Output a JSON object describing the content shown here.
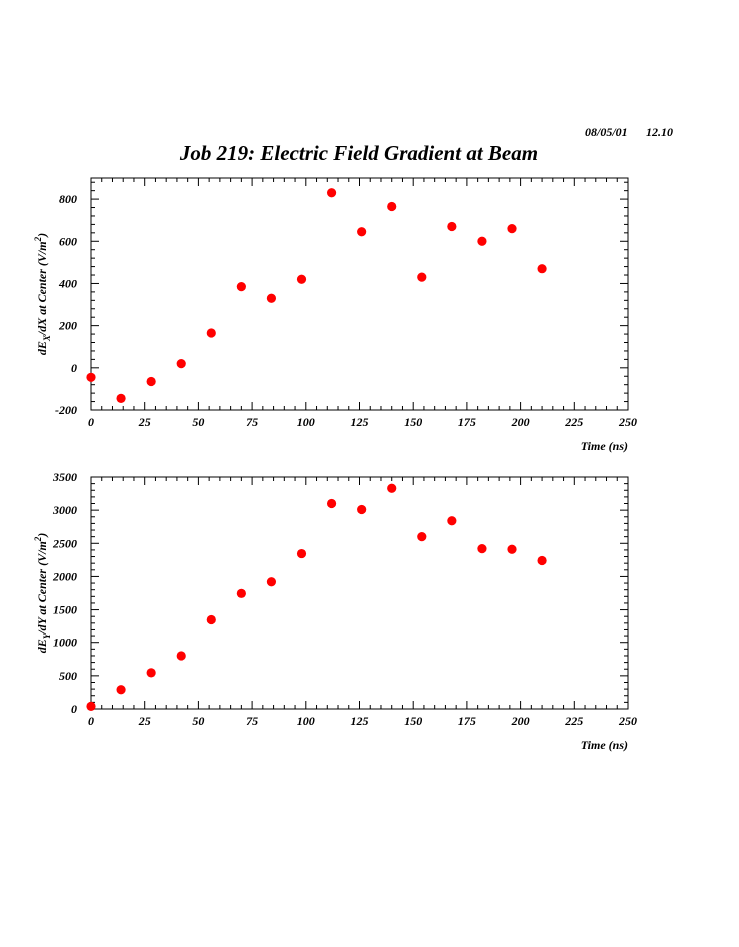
{
  "header": {
    "date": "08/05/01",
    "time": "12.10",
    "title": "Job 219: Electric Field Gradient at Beam"
  },
  "colors": {
    "marker": "#ff0000",
    "axes": "#000000"
  },
  "chart_data": [
    {
      "type": "scatter",
      "xlabel": "Time (ns)",
      "ylabel": "dE_X/dX at Center (V/m^2)",
      "ylabel_parts": [
        "dE",
        "X",
        "/dX at Center (V/m",
        "2",
        ")"
      ],
      "xlim": [
        0,
        250
      ],
      "ylim": [
        -200,
        900
      ],
      "x_ticks": [
        0,
        25,
        50,
        75,
        100,
        125,
        150,
        175,
        200,
        225,
        250
      ],
      "y_ticks": [
        -200,
        0,
        200,
        400,
        600,
        800
      ],
      "grid": false,
      "x": [
        0,
        14,
        28,
        42,
        56,
        70,
        84,
        98,
        112,
        126,
        140,
        154,
        168,
        182,
        196,
        210
      ],
      "y": [
        -45,
        -145,
        -65,
        20,
        165,
        385,
        330,
        420,
        830,
        645,
        765,
        430,
        670,
        600,
        660,
        470
      ]
    },
    {
      "type": "scatter",
      "xlabel": "Time (ns)",
      "ylabel": "dE_Y/dY at Center (V/m^2)",
      "ylabel_parts": [
        "dE",
        "Y",
        "/dY at Center (V/m",
        "2",
        ")"
      ],
      "xlim": [
        0,
        250
      ],
      "ylim": [
        0,
        3500
      ],
      "x_ticks": [
        0,
        25,
        50,
        75,
        100,
        125,
        150,
        175,
        200,
        225,
        250
      ],
      "y_ticks": [
        0,
        500,
        1000,
        1500,
        2000,
        2500,
        3000,
        3500
      ],
      "grid": false,
      "x": [
        0,
        14,
        28,
        42,
        56,
        70,
        84,
        98,
        112,
        126,
        140,
        154,
        168,
        182,
        196,
        210
      ],
      "y": [
        40,
        290,
        545,
        800,
        1350,
        1745,
        1920,
        2345,
        3100,
        3010,
        3330,
        2600,
        2840,
        2420,
        2410,
        2240
      ]
    }
  ]
}
